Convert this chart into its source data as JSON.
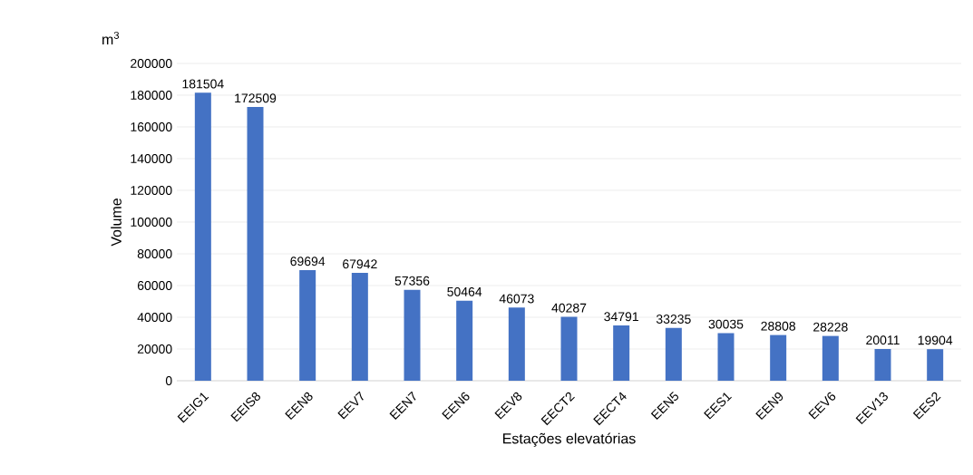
{
  "chart_data": {
    "type": "bar",
    "xlabel": "Estações elevatórias",
    "ylabel": "Volume",
    "annotations": [
      "m$^{3}$"
    ],
    "categories": [
      "EEIG1",
      "EEIS8",
      "EEN8",
      "EEV7",
      "EEN7",
      "EEN6",
      "EEV8",
      "EECT2",
      "EECT4",
      "EEN5",
      "EES1",
      "EEN9",
      "EEV6",
      "EEV13",
      "EES2"
    ],
    "values": [
      181504,
      172509,
      69694,
      67942,
      57356,
      50464,
      46073,
      40287,
      34791,
      33235,
      30035,
      28808,
      28228,
      20011,
      19904
    ],
    "color": "#4472c4",
    "ylim": [
      0,
      200000
    ],
    "yticks": [
      0,
      20000,
      40000,
      60000,
      80000,
      100000,
      120000,
      140000,
      160000,
      180000,
      200000
    ],
    "grid": "y",
    "data_labels": true
  }
}
